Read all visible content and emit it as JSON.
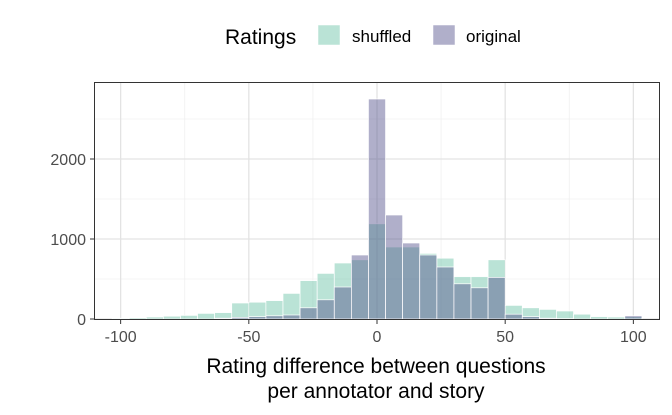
{
  "chart_data": {
    "type": "bar",
    "subtype": "overlapping-histogram",
    "title": "",
    "xlabel_line1": "Rating difference between questions",
    "xlabel_line2": "per annotator and story",
    "ylabel": "",
    "xlim": [
      -110,
      110
    ],
    "ylim": [
      0,
      2950
    ],
    "x_ticks": [
      -100,
      -50,
      0,
      50,
      100
    ],
    "x_tick_labels": [
      "-100",
      "-50",
      "0",
      "50",
      "100"
    ],
    "y_ticks": [
      0,
      1000,
      2000
    ],
    "y_tick_labels": [
      "0",
      "1000",
      "2000"
    ],
    "grid": true,
    "legend": {
      "title": "Ratings",
      "placement": "top",
      "entries": [
        "shuffled",
        "original"
      ]
    },
    "bin_width": 6.67,
    "bin_centers": [
      -100,
      -93.33,
      -86.67,
      -80,
      -73.33,
      -66.67,
      -60,
      -53.33,
      -46.67,
      -40,
      -33.33,
      -26.67,
      -20,
      -13.33,
      -6.67,
      0,
      6.67,
      13.33,
      20,
      26.67,
      33.33,
      40,
      46.67,
      53.33,
      60,
      66.67,
      73.33,
      80,
      86.67,
      93.33,
      100
    ],
    "series": [
      {
        "name": "shuffled",
        "color": "#66c2a5",
        "values": [
          10,
          15,
          25,
          35,
          45,
          70,
          80,
          200,
          210,
          230,
          320,
          480,
          570,
          700,
          740,
          1190,
          900,
          900,
          820,
          760,
          530,
          530,
          740,
          170,
          140,
          120,
          100,
          60,
          30,
          25,
          30
        ]
      },
      {
        "name": "original",
        "color": "#4f4e8a",
        "values": [
          0,
          0,
          0,
          0,
          0,
          0,
          10,
          20,
          30,
          40,
          50,
          140,
          240,
          400,
          800,
          2750,
          1300,
          950,
          800,
          650,
          440,
          390,
          520,
          60,
          30,
          10,
          5,
          0,
          0,
          0,
          40
        ]
      }
    ],
    "colors": {
      "shuffled": "#66c2a5",
      "original": "#4f4e8a",
      "overlap_note": "semi-transparent fills"
    }
  }
}
